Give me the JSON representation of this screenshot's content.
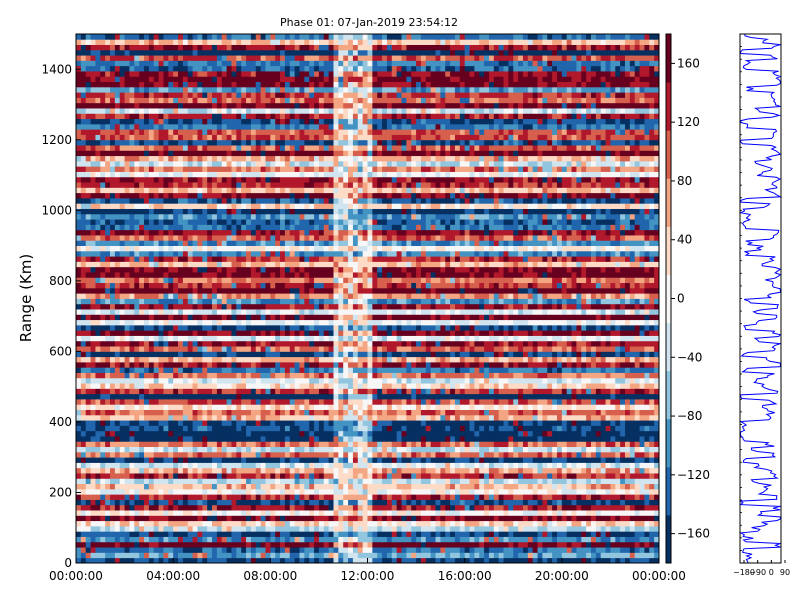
{
  "figure": {
    "title": "Phase 01: 07-Jan-2019 23:54:12"
  },
  "chart_data": [
    {
      "type": "heatmap",
      "title": "Phase 01: 07-Jan-2019 23:54:12",
      "xlabel": "",
      "ylabel": "Range (Km)",
      "x_tick_labels": [
        "00:00:00",
        "04:00:00",
        "08:00:00",
        "12:00:00",
        "16:00:00",
        "20:00:00",
        "00:00:00"
      ],
      "xlim": [
        "00:00:00",
        "24:00:00"
      ],
      "y_ticks": [
        0,
        200,
        400,
        600,
        800,
        1000,
        1200,
        1400
      ],
      "ylim": [
        0,
        1500
      ],
      "colorbar": {
        "ticks": [
          160,
          120,
          80,
          40,
          0,
          -40,
          -80,
          -120,
          -160
        ],
        "range": [
          -180,
          180
        ],
        "colormap": "RdBu_r",
        "colors": [
          "#053061",
          "#2166ac",
          "#4393c3",
          "#92c5de",
          "#d1e5f0",
          "#f7f7f7",
          "#fddbc7",
          "#f4a582",
          "#d6604d",
          "#b2182b",
          "#67001f"
        ]
      },
      "grid": false,
      "description": "Phase values (degrees) versus time of day and range; rows alternate strongly between red (positive) and blue (negative) phase. A vertical disturbed band appears near 10:30-12:00."
    },
    {
      "type": "line",
      "title": "",
      "xlabel": "",
      "ylabel": "",
      "x_tick_labels": [
        "−180",
        "−90",
        "0",
        "90"
      ],
      "xlim": [
        -180,
        180
      ],
      "ylim": [
        0,
        1500
      ],
      "color": "#0000ff",
      "description": "Phase profile versus range at the final time, oscillating between roughly -180 and 180 degrees."
    }
  ]
}
